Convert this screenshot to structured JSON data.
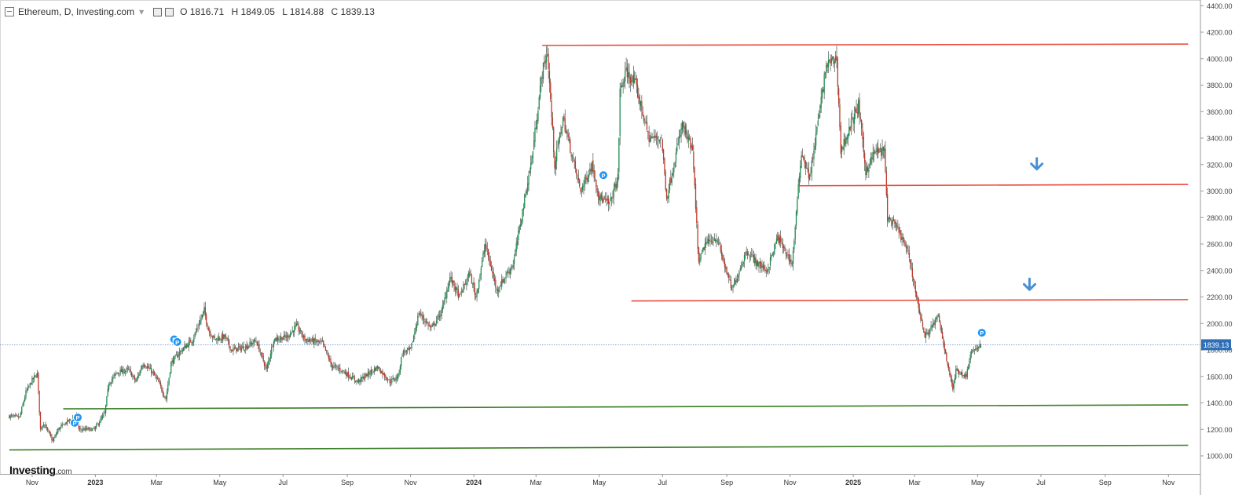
{
  "header": {
    "title": "Ethereum, D, Investing.com",
    "open": "O 1816.71",
    "high": "H 1849.05",
    "low": "L 1814.88",
    "close": "C 1839.13"
  },
  "logo": {
    "main": "Investing",
    "suffix": ".com"
  },
  "colors": {
    "up": "#1e8c4e",
    "down": "#c0392b",
    "resistance": "#e74c3c",
    "support": "#3a7d23",
    "price_line": "#5a86c4",
    "price_tag": "#2f6fb8",
    "marker": "#2196f3",
    "arrow": "#4a8fd6"
  },
  "chart_data": {
    "type": "candlestick",
    "title": "Ethereum, D, Investing.com",
    "current_price": 1839.13,
    "current_price_label": "1839.13",
    "ylim": [
      920,
      4480
    ],
    "y_ticks": [
      {
        "value": 1000,
        "label": "1000.00"
      },
      {
        "value": 1200,
        "label": "1200.00"
      },
      {
        "value": 1400,
        "label": "1400.00"
      },
      {
        "value": 1600,
        "label": "1600.00"
      },
      {
        "value": 1800,
        "label": "1800.00"
      },
      {
        "value": 2000,
        "label": "2000.00"
      },
      {
        "value": 2200,
        "label": "2200.00"
      },
      {
        "value": 2400,
        "label": "2400.00"
      },
      {
        "value": 2600,
        "label": "2600.00"
      },
      {
        "value": 2800,
        "label": "2800.00"
      },
      {
        "value": 3000,
        "label": "3000.00"
      },
      {
        "value": 3200,
        "label": "3200.00"
      },
      {
        "value": 3400,
        "label": "3400.00"
      },
      {
        "value": 3600,
        "label": "3600.00"
      },
      {
        "value": 3800,
        "label": "3800.00"
      },
      {
        "value": 4000,
        "label": "4000.00"
      },
      {
        "value": 4200,
        "label": "4200.00"
      },
      {
        "value": 4400,
        "label": "4400.00"
      }
    ],
    "x_ticks": [
      {
        "date": "2022-11-01",
        "label": "Nov",
        "bold": false
      },
      {
        "date": "2023-01-01",
        "label": "2023",
        "bold": true
      },
      {
        "date": "2023-03-01",
        "label": "Mar",
        "bold": false
      },
      {
        "date": "2023-05-01",
        "label": "May",
        "bold": false
      },
      {
        "date": "2023-07-01",
        "label": "Jul",
        "bold": false
      },
      {
        "date": "2023-09-01",
        "label": "Sep",
        "bold": false
      },
      {
        "date": "2023-11-01",
        "label": "Nov",
        "bold": false
      },
      {
        "date": "2024-01-01",
        "label": "2024",
        "bold": true
      },
      {
        "date": "2024-03-01",
        "label": "Mar",
        "bold": false
      },
      {
        "date": "2024-05-01",
        "label": "May",
        "bold": false
      },
      {
        "date": "2024-07-01",
        "label": "Jul",
        "bold": false
      },
      {
        "date": "2024-09-01",
        "label": "Sep",
        "bold": false
      },
      {
        "date": "2024-11-01",
        "label": "Nov",
        "bold": false
      },
      {
        "date": "2025-01-01",
        "label": "2025",
        "bold": true
      },
      {
        "date": "2025-03-01",
        "label": "Mar",
        "bold": false
      },
      {
        "date": "2025-05-01",
        "label": "May",
        "bold": false
      },
      {
        "date": "2025-07-01",
        "label": "Jul",
        "bold": false
      },
      {
        "date": "2025-09-01",
        "label": "Sep",
        "bold": false
      },
      {
        "date": "2025-11-01",
        "label": "Nov",
        "bold": false
      }
    ],
    "close_path": [
      [
        "2022-10-10",
        1300
      ],
      [
        "2022-10-20",
        1290
      ],
      [
        "2022-10-26",
        1480
      ],
      [
        "2022-11-01",
        1570
      ],
      [
        "2022-11-06",
        1620
      ],
      [
        "2022-11-09",
        1200
      ],
      [
        "2022-11-12",
        1250
      ],
      [
        "2022-11-21",
        1110
      ],
      [
        "2022-11-26",
        1200
      ],
      [
        "2022-12-05",
        1260
      ],
      [
        "2022-12-14",
        1300
      ],
      [
        "2022-12-16",
        1200
      ],
      [
        "2022-12-31",
        1200
      ],
      [
        "2023-01-10",
        1320
      ],
      [
        "2023-01-14",
        1550
      ],
      [
        "2023-01-22",
        1630
      ],
      [
        "2023-02-02",
        1650
      ],
      [
        "2023-02-09",
        1560
      ],
      [
        "2023-02-16",
        1700
      ],
      [
        "2023-02-24",
        1640
      ],
      [
        "2023-03-02",
        1570
      ],
      [
        "2023-03-10",
        1430
      ],
      [
        "2023-03-15",
        1700
      ],
      [
        "2023-03-23",
        1780
      ],
      [
        "2023-04-05",
        1880
      ],
      [
        "2023-04-16",
        2100
      ],
      [
        "2023-04-20",
        1950
      ],
      [
        "2023-04-26",
        1880
      ],
      [
        "2023-05-06",
        1900
      ],
      [
        "2023-05-12",
        1800
      ],
      [
        "2023-05-25",
        1820
      ],
      [
        "2023-06-05",
        1870
      ],
      [
        "2023-06-10",
        1760
      ],
      [
        "2023-06-15",
        1650
      ],
      [
        "2023-06-22",
        1880
      ],
      [
        "2023-07-05",
        1900
      ],
      [
        "2023-07-14",
        1980
      ],
      [
        "2023-07-22",
        1880
      ],
      [
        "2023-08-08",
        1850
      ],
      [
        "2023-08-17",
        1680
      ],
      [
        "2023-08-26",
        1650
      ],
      [
        "2023-09-11",
        1560
      ],
      [
        "2023-09-30",
        1670
      ],
      [
        "2023-10-12",
        1560
      ],
      [
        "2023-10-20",
        1600
      ],
      [
        "2023-10-24",
        1780
      ],
      [
        "2023-11-01",
        1800
      ],
      [
        "2023-11-09",
        2080
      ],
      [
        "2023-11-21",
        1960
      ],
      [
        "2023-12-01",
        2090
      ],
      [
        "2023-12-09",
        2350
      ],
      [
        "2023-12-18",
        2200
      ],
      [
        "2023-12-28",
        2380
      ],
      [
        "2024-01-03",
        2200
      ],
      [
        "2024-01-12",
        2600
      ],
      [
        "2024-01-23",
        2250
      ],
      [
        "2024-02-08",
        2450
      ],
      [
        "2024-02-26",
        3250
      ],
      [
        "2024-03-07",
        3900
      ],
      [
        "2024-03-12",
        4050
      ],
      [
        "2024-03-19",
        3200
      ],
      [
        "2024-03-27",
        3550
      ],
      [
        "2024-04-13",
        3000
      ],
      [
        "2024-04-24",
        3200
      ],
      [
        "2024-05-01",
        2950
      ],
      [
        "2024-05-11",
        2900
      ],
      [
        "2024-05-19",
        3100
      ],
      [
        "2024-05-21",
        3750
      ],
      [
        "2024-05-27",
        3900
      ],
      [
        "2024-06-05",
        3800
      ],
      [
        "2024-06-18",
        3400
      ],
      [
        "2024-06-30",
        3400
      ],
      [
        "2024-07-05",
        2950
      ],
      [
        "2024-07-20",
        3500
      ],
      [
        "2024-07-30",
        3300
      ],
      [
        "2024-08-05",
        2450
      ],
      [
        "2024-08-11",
        2600
      ],
      [
        "2024-08-22",
        2650
      ],
      [
        "2024-09-06",
        2250
      ],
      [
        "2024-09-20",
        2550
      ],
      [
        "2024-10-01",
        2450
      ],
      [
        "2024-10-10",
        2400
      ],
      [
        "2024-10-20",
        2650
      ],
      [
        "2024-11-03",
        2450
      ],
      [
        "2024-11-12",
        3300
      ],
      [
        "2024-11-20",
        3100
      ],
      [
        "2024-12-06",
        3950
      ],
      [
        "2024-12-16",
        4000
      ],
      [
        "2024-12-20",
        3300
      ],
      [
        "2025-01-06",
        3650
      ],
      [
        "2025-01-13",
        3150
      ],
      [
        "2025-01-22",
        3300
      ],
      [
        "2025-01-31",
        3300
      ],
      [
        "2025-02-03",
        2800
      ],
      [
        "2025-02-14",
        2700
      ],
      [
        "2025-02-24",
        2500
      ],
      [
        "2025-03-03",
        2200
      ],
      [
        "2025-03-11",
        1900
      ],
      [
        "2025-03-24",
        2050
      ],
      [
        "2025-03-29",
        1850
      ],
      [
        "2025-04-07",
        1500
      ],
      [
        "2025-04-10",
        1650
      ],
      [
        "2025-04-20",
        1600
      ],
      [
        "2025-04-24",
        1780
      ],
      [
        "2025-05-04",
        1839.13
      ]
    ],
    "horizontal_lines": [
      {
        "name": "resistance-upper",
        "kind": "resistance",
        "from": [
          "2024-03-07",
          4100
        ],
        "to": [
          "2025-11-20",
          4110
        ]
      },
      {
        "name": "resistance-middle",
        "kind": "resistance",
        "from": [
          "2024-11-10",
          3040
        ],
        "to": [
          "2025-11-20",
          3050
        ]
      },
      {
        "name": "resistance-lower",
        "kind": "resistance",
        "from": [
          "2024-06-01",
          2170
        ],
        "to": [
          "2025-11-20",
          2180
        ]
      },
      {
        "name": "support-upper",
        "kind": "support",
        "from": [
          "2022-12-01",
          1355
        ],
        "to": [
          "2025-11-20",
          1385
        ]
      },
      {
        "name": "support-lower",
        "kind": "support",
        "from": [
          "2022-10-10",
          1045
        ],
        "to": [
          "2025-11-20",
          1080
        ]
      }
    ],
    "arrows": [
      {
        "name": "down-arrow-upper",
        "date": "2025-06-27",
        "value": 3200
      },
      {
        "name": "down-arrow-lower",
        "date": "2025-06-20",
        "value": 2290
      }
    ],
    "markers": [
      {
        "date": "2022-12-12",
        "value": 1250
      },
      {
        "date": "2022-12-15",
        "value": 1290
      },
      {
        "date": "2023-03-18",
        "value": 1880
      },
      {
        "date": "2023-03-21",
        "value": 1860
      },
      {
        "date": "2024-05-05",
        "value": 3120
      },
      {
        "date": "2025-05-05",
        "value": 1930
      }
    ],
    "grid": false,
    "legend": "none"
  }
}
